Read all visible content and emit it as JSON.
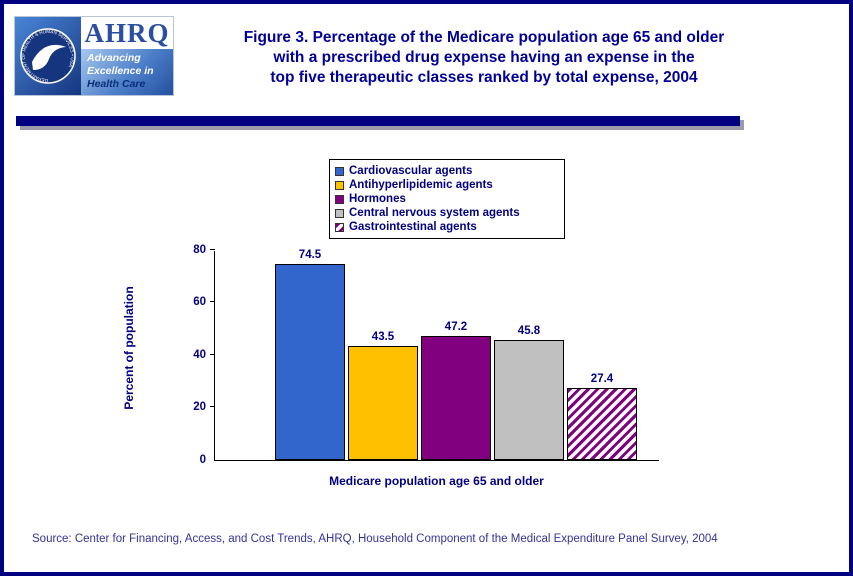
{
  "page": {
    "title_lines": [
      "Figure 3. Percentage of the Medicare population age 65 and older",
      "with a prescribed drug expense having an expense in the",
      "top five therapeutic classes ranked by total expense, 2004"
    ],
    "source": "Source: Center for Financing, Access, and Cost Trends, AHRQ, Household Component of the Medical Expenditure Panel Survey, 2004"
  },
  "logo": {
    "org": "AHRQ",
    "seal_text": "DEPARTMENT OF HEALTH & HUMAN SERVICES • USA",
    "tagline_lines": [
      "Advancing",
      "Excellence in",
      "Health Care"
    ]
  },
  "chart_data": {
    "type": "bar",
    "title": "Figure 3. Percentage of the Medicare population age 65 and older with a prescribed drug expense having an expense in the top five therapeutic classes ranked by total expense, 2004",
    "categories": [
      "Cardiovascular agents",
      "Antihyperlipidemic agents",
      "Hormones",
      "Central nervous system agents",
      "Gastrointestinal agents"
    ],
    "values": [
      74.5,
      43.5,
      47.2,
      45.8,
      27.4
    ],
    "colors": [
      "#3366CC",
      "#FFC000",
      "#800080",
      "#C0C0C0",
      "hatch:#800080"
    ],
    "xlabel": "Medicare population age 65 and older",
    "ylabel": "Percent of population",
    "ylim": [
      0,
      80
    ],
    "yticks": [
      0,
      20,
      40,
      60,
      80
    ],
    "grid": false,
    "legend_position": "top-center"
  }
}
